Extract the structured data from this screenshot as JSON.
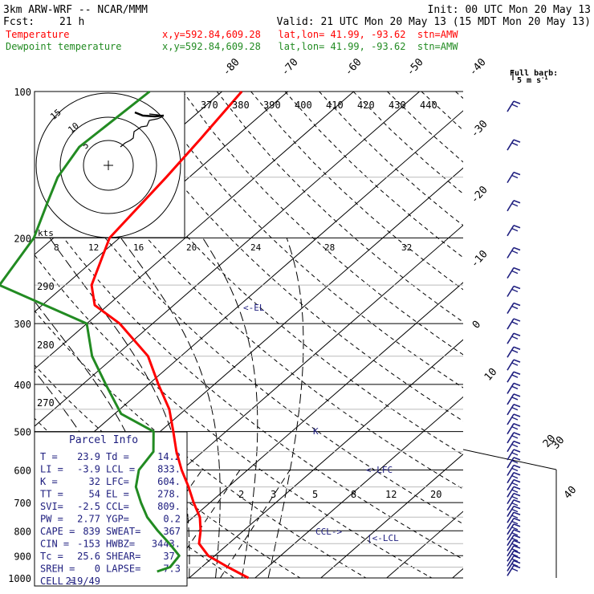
{
  "header": {
    "line1_left": "3km ARW-WRF -- NCAR/MMM",
    "line1_right": "Init: 00 UTC Mon 20 May 13",
    "line2_left_label": "Fcst:",
    "line2_left_value": "21 h",
    "line2_right": "Valid: 21 UTC Mon 20 May 13 (15 MDT Mon 20 May 13)",
    "line3_label": "Temperature",
    "line3_info": "x,y=592.84,609.28   lat,lon= 41.99, -93.62  stn=AMW",
    "line4_label": "Dewpoint temperature",
    "line4_info": "x,y=592.84,609.28   lat,lon= 41.99, -93.62  stn=AMW",
    "colors": {
      "temperature": "#ff0000",
      "dewpoint": "#228b22",
      "labels": "#202080",
      "text": "#000000"
    }
  },
  "wind_legend": {
    "title": "Full barb:",
    "value": "5 m s",
    "superscript": "-1"
  },
  "hodograph": {
    "ring_labels": [
      "5",
      "10",
      "15"
    ],
    "axis_label": "kts",
    "scale_labels": [
      "8",
      "12",
      "16",
      "20",
      "24",
      "28",
      "32"
    ]
  },
  "parcel_info": {
    "title": "Parcel Info",
    "rows": [
      [
        "T  =",
        "23.9",
        "Td =",
        "14.2"
      ],
      [
        "LI =",
        "-3.9",
        "LCL =",
        "833."
      ],
      [
        "K  =",
        "32",
        "LFC=",
        "604."
      ],
      [
        "TT =",
        "54",
        "EL =",
        "278."
      ],
      [
        "SVI=",
        "-2.5",
        "CCL=",
        "809."
      ],
      [
        "PW =",
        "2.77",
        "YGP=",
        "0.2"
      ],
      [
        "CAPE =",
        "839",
        "SWEAT=",
        "367"
      ],
      [
        "CIN =",
        "-153",
        "HWBZ=",
        "3443."
      ],
      [
        "Tc =",
        "25.6",
        "SHEAR=",
        "37."
      ],
      [
        "SREH =",
        "0",
        "LAPSE=",
        "7.3"
      ],
      [
        "CELL =",
        "219/49",
        "",
        ""
      ]
    ]
  },
  "annotations": {
    "el": "<-EL",
    "k": "K",
    "lfc": "<-LFC",
    "ccl": "CCL->",
    "lcl": "|<-LCL"
  },
  "chart_data": {
    "type": "line",
    "title": "",
    "pressure_axis": {
      "ticks": [
        100,
        200,
        300,
        400,
        500,
        600,
        700,
        800,
        900,
        1000
      ],
      "ylim": [
        1000,
        100
      ],
      "scale": "log"
    },
    "isotherm_labels": [
      "-80",
      "-70",
      "-60",
      "-50",
      "-40",
      "-30",
      "-20",
      "-10",
      "0",
      "10",
      "20",
      "30",
      "40"
    ],
    "theta_labels_top": [
      "370",
      "380",
      "390",
      "400",
      "410",
      "420",
      "430",
      "440"
    ],
    "theta_labels_left": [
      "290",
      "280",
      "270"
    ],
    "mixing_ratio_labels": [
      "2",
      "3",
      "5",
      "8",
      "12",
      "20"
    ],
    "series": [
      {
        "name": "Temperature",
        "color": "#ff0000",
        "points": [
          [
            1000,
            29.0
          ],
          [
            950,
            24.0
          ],
          [
            900,
            19.0
          ],
          [
            850,
            15.5
          ],
          [
            800,
            13.5
          ],
          [
            750,
            11.0
          ],
          [
            700,
            7.5
          ],
          [
            650,
            4.0
          ],
          [
            600,
            0.0
          ],
          [
            550,
            -4.0
          ],
          [
            500,
            -8.0
          ],
          [
            450,
            -12.5
          ],
          [
            400,
            -18.5
          ],
          [
            350,
            -25.0
          ],
          [
            300,
            -35.0
          ],
          [
            275,
            -42.0
          ],
          [
            250,
            -46.0
          ],
          [
            200,
            -51.5
          ],
          [
            150,
            -53.5
          ],
          [
            125,
            -55.0
          ],
          [
            100,
            -57.0
          ]
        ]
      },
      {
        "name": "Dewpoint temperature",
        "color": "#228b22",
        "points": [
          [
            970,
            14.0
          ],
          [
            950,
            15.2
          ],
          [
            900,
            14.6
          ],
          [
            850,
            11.0
          ],
          [
            800,
            7.0
          ],
          [
            750,
            3.0
          ],
          [
            700,
            -0.5
          ],
          [
            650,
            -4.0
          ],
          [
            600,
            -6.5
          ],
          [
            550,
            -7.5
          ],
          [
            500,
            -11.0
          ],
          [
            460,
            -19.0
          ],
          [
            400,
            -26.5
          ],
          [
            350,
            -33.5
          ],
          [
            300,
            -40.0
          ],
          [
            250,
            -60.0
          ],
          [
            200,
            -63.0
          ],
          [
            170,
            -67.0
          ],
          [
            150,
            -70.0
          ],
          [
            130,
            -72.0
          ],
          [
            100,
            -71.0
          ]
        ]
      }
    ]
  }
}
